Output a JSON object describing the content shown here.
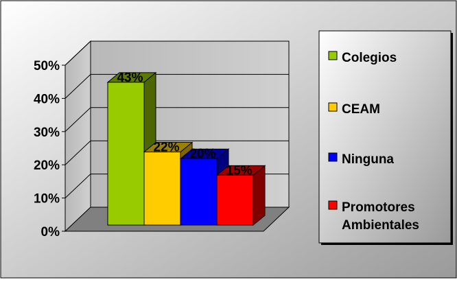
{
  "chart_data": {
    "type": "bar",
    "style": "3d-clustered",
    "categories": [
      "Colegios",
      "CEAM",
      "Ninguna",
      "Promotores Ambientales"
    ],
    "values": [
      43,
      22,
      20,
      15
    ],
    "value_labels": [
      "43%",
      "22%",
      "20%",
      "15%"
    ],
    "ylim": [
      0,
      50
    ],
    "yticks": [
      "0%",
      "10%",
      "20%",
      "30%",
      "40%",
      "50%"
    ],
    "grid": true,
    "legend_position": "right",
    "legend": [
      {
        "lines": [
          "Colegios"
        ],
        "color": "#99CC00"
      },
      {
        "lines": [
          "CEAM"
        ],
        "color": "#FFCC00"
      },
      {
        "lines": [
          "Ninguna"
        ],
        "color": "#0000FF"
      },
      {
        "lines": [
          "Promotores",
          "Ambientales"
        ],
        "color": "#FF0000"
      }
    ],
    "colors": {
      "bars": [
        "#99CC00",
        "#FFCC00",
        "#0000FF",
        "#FF0000"
      ],
      "bar_sides": [
        "#4D6600",
        "#806600",
        "#000080",
        "#800000"
      ],
      "bar_tops": [
        "#5C7A00",
        "#998000",
        "#000099",
        "#990000"
      ],
      "wall": "#C0C0C0",
      "floor": "#808080",
      "background_light": "#FFFFFF",
      "background_dark": "#9A9A9A"
    }
  }
}
